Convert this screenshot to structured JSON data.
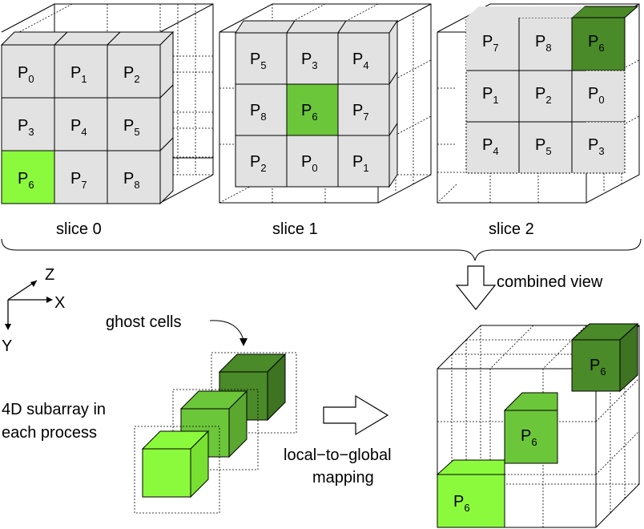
{
  "colors": {
    "cell_gray": "#e2e2e2",
    "green_light": "#8cfa3c",
    "green_mid": "#6cc63a",
    "green_dark": "#4a8a28"
  },
  "slices": [
    {
      "label": "slice 0",
      "cells": [
        {
          "main": "P",
          "sub": "0"
        },
        {
          "main": "P",
          "sub": "1"
        },
        {
          "main": "P",
          "sub": "2"
        },
        {
          "main": "P",
          "sub": "3"
        },
        {
          "main": "P",
          "sub": "4"
        },
        {
          "main": "P",
          "sub": "5"
        },
        {
          "main": "P",
          "sub": "6"
        },
        {
          "main": "P",
          "sub": "7"
        },
        {
          "main": "P",
          "sub": "8"
        }
      ]
    },
    {
      "label": "slice 1",
      "cells": [
        {
          "main": "P",
          "sub": "5"
        },
        {
          "main": "P",
          "sub": "3"
        },
        {
          "main": "P",
          "sub": "4"
        },
        {
          "main": "P",
          "sub": "8"
        },
        {
          "main": "P",
          "sub": "6"
        },
        {
          "main": "P",
          "sub": "7"
        },
        {
          "main": "P",
          "sub": "2"
        },
        {
          "main": "P",
          "sub": "0"
        },
        {
          "main": "P",
          "sub": "1"
        }
      ]
    },
    {
      "label": "slice 2",
      "cells": [
        {
          "main": "P",
          "sub": "7"
        },
        {
          "main": "P",
          "sub": "8"
        },
        {
          "main": "P",
          "sub": "6"
        },
        {
          "main": "P",
          "sub": "1"
        },
        {
          "main": "P",
          "sub": "2"
        },
        {
          "main": "P",
          "sub": "0"
        },
        {
          "main": "P",
          "sub": "4"
        },
        {
          "main": "P",
          "sub": "5"
        },
        {
          "main": "P",
          "sub": "3"
        }
      ]
    }
  ],
  "combined_view_label": "combined view",
  "axes": {
    "z": "Z",
    "x": "X",
    "y": "Y"
  },
  "ghost_cells_label": "ghost cells",
  "subarray_label_line1": "4D subarray in",
  "subarray_label_line2": "each process",
  "mapping_label_line1": "local−to−global",
  "mapping_label_line2": "mapping",
  "combined_cells": [
    {
      "main": "P",
      "sub": "6"
    },
    {
      "main": "P",
      "sub": "6"
    },
    {
      "main": "P",
      "sub": "6"
    }
  ]
}
